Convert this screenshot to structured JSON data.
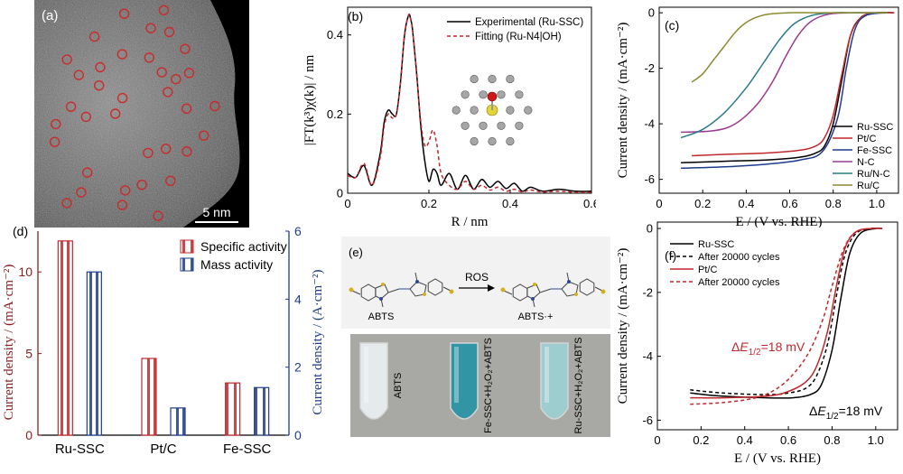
{
  "panels": {
    "a": {
      "label": "(a)",
      "scalebar": "5 nm",
      "circle_count": 36
    },
    "b": {
      "label": "(b)"
    },
    "c": {
      "label": "(c)"
    },
    "d": {
      "label": "(d)"
    },
    "e": {
      "label": "(e)",
      "reactant": "ABTS",
      "arrow_label": "ROS",
      "product": "ABTS·+",
      "vial_labels": [
        "ABTS",
        "Fe-SSC+H₂O₂+ABTS",
        "Ru-SSC+H₂O₂+ABTS"
      ],
      "vial_colors": [
        "#e9eef0",
        "#2c94a6",
        "#9ecfd3"
      ]
    },
    "f": {
      "label": "(f)",
      "annotation_red": "ΔE1/2=18 mV",
      "annotation_black": "ΔE1/2=18 mV"
    }
  },
  "chart_data": [
    {
      "panel": "b",
      "type": "line",
      "xlabel": "R / nm",
      "ylabel": "|FT(k³)χ(k)| / nm",
      "xlim": [
        0,
        0.6
      ],
      "ylim": [
        0,
        0.47
      ],
      "xticks": [
        0,
        0.2,
        0.4,
        0.6
      ],
      "yticks": [
        0,
        0.2,
        0.4
      ],
      "legend_position": "top-right",
      "series": [
        {
          "name": "Experimental (Ru-SSC)",
          "color": "#000000",
          "dash": "solid",
          "x": [
            0,
            0.02,
            0.04,
            0.06,
            0.08,
            0.09,
            0.1,
            0.11,
            0.12,
            0.13,
            0.14,
            0.15,
            0.155,
            0.16,
            0.17,
            0.18,
            0.19,
            0.2,
            0.21,
            0.22,
            0.23,
            0.25,
            0.27,
            0.29,
            0.31,
            0.33,
            0.35,
            0.37,
            0.39,
            0.41,
            0.43,
            0.45,
            0.48,
            0.52,
            0.56,
            0.6
          ],
          "y": [
            0.05,
            0.04,
            0.07,
            0.02,
            0.1,
            0.18,
            0.21,
            0.2,
            0.2,
            0.28,
            0.4,
            0.45,
            0.44,
            0.41,
            0.3,
            0.17,
            0.08,
            0.03,
            0.06,
            0.05,
            0.02,
            0.05,
            0.01,
            0.045,
            0.01,
            0.035,
            0.015,
            0.03,
            0.012,
            0.025,
            0.005,
            0.015,
            0.005,
            0.01,
            0.005,
            0.005
          ]
        },
        {
          "name": "Fitting (Ru-N4|OH)",
          "color": "#c0282d",
          "dash": "dashed",
          "x": [
            0,
            0.02,
            0.04,
            0.06,
            0.08,
            0.09,
            0.1,
            0.11,
            0.12,
            0.13,
            0.14,
            0.15,
            0.155,
            0.16,
            0.17,
            0.18,
            0.19,
            0.2,
            0.21,
            0.22,
            0.23,
            0.25,
            0.27,
            0.29,
            0.31,
            0.33,
            0.35,
            0.37,
            0.39,
            0.41,
            0.43,
            0.45,
            0.48,
            0.52,
            0.56,
            0.6
          ],
          "y": [
            0.045,
            0.04,
            0.075,
            0.02,
            0.09,
            0.17,
            0.2,
            0.19,
            0.2,
            0.28,
            0.4,
            0.45,
            0.44,
            0.41,
            0.3,
            0.18,
            0.12,
            0.13,
            0.16,
            0.12,
            0.05,
            0.02,
            0.01,
            0.03,
            0.01,
            0.02,
            0.008,
            0.015,
            0.005,
            0.01,
            0.003,
            0.008,
            0.003,
            0.005,
            0.002,
            0.002
          ]
        }
      ]
    },
    {
      "panel": "c",
      "type": "line",
      "xlabel": "E / (V vs. RHE)",
      "ylabel": "Current density / (mA·cm⁻²)",
      "xlim": [
        0,
        1.1
      ],
      "ylim": [
        -6.5,
        0.2
      ],
      "xticks": [
        0,
        0.2,
        0.4,
        0.6,
        0.8,
        1.0
      ],
      "yticks": [
        0,
        -2,
        -4,
        -6
      ],
      "legend_position": "bottom-right",
      "series": [
        {
          "name": "Ru-SSC",
          "color": "#000000",
          "x": [
            0.1,
            0.3,
            0.5,
            0.65,
            0.72,
            0.76,
            0.8,
            0.84,
            0.88,
            0.93,
            1.0,
            1.08
          ],
          "y": [
            -5.4,
            -5.35,
            -5.3,
            -5.2,
            -5.05,
            -4.8,
            -4.0,
            -2.4,
            -0.8,
            -0.15,
            0,
            0
          ]
        },
        {
          "name": "Pt/C",
          "color": "#c0282d",
          "x": [
            0.15,
            0.3,
            0.5,
            0.65,
            0.72,
            0.76,
            0.8,
            0.84,
            0.88,
            0.93,
            1.0,
            1.08
          ],
          "y": [
            -5.15,
            -5.1,
            -5.05,
            -4.95,
            -4.8,
            -4.5,
            -3.7,
            -2.2,
            -0.8,
            -0.15,
            0,
            0
          ]
        },
        {
          "name": "Fe-SSC",
          "color": "#1f3c8c",
          "x": [
            0.1,
            0.3,
            0.5,
            0.65,
            0.75,
            0.82,
            0.86,
            0.9,
            0.95,
            1.05
          ],
          "y": [
            -5.6,
            -5.55,
            -5.45,
            -5.3,
            -5.0,
            -3.8,
            -2.0,
            -0.6,
            -0.1,
            0
          ]
        },
        {
          "name": "N-C",
          "color": "#9c3a8e",
          "x": [
            0.1,
            0.25,
            0.35,
            0.45,
            0.52,
            0.58,
            0.64,
            0.7,
            0.78,
            0.9,
            1.05
          ],
          "y": [
            -4.3,
            -4.25,
            -4.0,
            -3.3,
            -2.5,
            -1.6,
            -0.8,
            -0.3,
            -0.05,
            0,
            0
          ]
        },
        {
          "name": "Ru/N-C",
          "color": "#2b7a8c",
          "x": [
            0.1,
            0.2,
            0.3,
            0.4,
            0.48,
            0.55,
            0.62,
            0.7,
            0.8,
            0.9,
            1.05
          ],
          "y": [
            -4.5,
            -4.2,
            -3.6,
            -2.7,
            -1.8,
            -1.0,
            -0.4,
            -0.1,
            0,
            0,
            0
          ]
        },
        {
          "name": "Ru/C",
          "color": "#8c8a2e",
          "x": [
            0.15,
            0.2,
            0.25,
            0.3,
            0.35,
            0.4,
            0.45,
            0.5,
            0.6,
            0.7,
            0.8,
            0.9,
            1.05
          ],
          "y": [
            -2.5,
            -2.2,
            -1.7,
            -1.2,
            -0.7,
            -0.35,
            -0.15,
            -0.05,
            0,
            0,
            0,
            0,
            0
          ]
        }
      ]
    },
    {
      "panel": "d",
      "type": "bar",
      "categories": [
        "Ru-SSC",
        "Pt/C",
        "Fe-SSC"
      ],
      "ylabel": "Current density / (mA·cm⁻²)",
      "y2label": "Current density / (A·cm⁻²)",
      "ylim": [
        0,
        12.5
      ],
      "y2lim": [
        0,
        6
      ],
      "yticks": [
        0,
        5,
        10
      ],
      "y2ticks": [
        0,
        2,
        4,
        6
      ],
      "legend_position": "top-right",
      "series": [
        {
          "name": "Specific activity",
          "color": "#c0282d",
          "axis": "left",
          "values": [
            11.9,
            4.7,
            3.2
          ]
        },
        {
          "name": "Mass activity",
          "color": "#1f3c8c",
          "axis": "right",
          "values": [
            4.8,
            0.8,
            1.4
          ]
        }
      ]
    },
    {
      "panel": "f",
      "type": "line",
      "xlabel": "E / (V vs. RHE)",
      "ylabel": "Current density / (mA·cm⁻²)",
      "xlim": [
        0,
        1.1
      ],
      "ylim": [
        -6.3,
        0.2
      ],
      "xticks": [
        0,
        0.2,
        0.4,
        0.6,
        0.8,
        1.0
      ],
      "yticks": [
        0,
        -2,
        -4,
        -6
      ],
      "legend_position": "top-left",
      "series": [
        {
          "name": "Ru-SSC",
          "color": "#000000",
          "dash": "solid",
          "x": [
            0.15,
            0.3,
            0.5,
            0.62,
            0.7,
            0.75,
            0.8,
            0.84,
            0.88,
            0.93,
            1.0,
            1.03
          ],
          "y": [
            -5.15,
            -5.25,
            -5.3,
            -5.3,
            -5.2,
            -4.9,
            -3.8,
            -2.2,
            -0.8,
            -0.15,
            0,
            0
          ]
        },
        {
          "name": "After 20000 cycles",
          "color": "#000000",
          "dash": "dashed",
          "x": [
            0.15,
            0.3,
            0.5,
            0.6,
            0.68,
            0.73,
            0.78,
            0.82,
            0.86,
            0.91,
            0.98,
            1.03
          ],
          "y": [
            -5.05,
            -5.15,
            -5.2,
            -5.15,
            -5.0,
            -4.6,
            -3.6,
            -2.1,
            -0.8,
            -0.15,
            0,
            0
          ]
        },
        {
          "name": "Pt/C",
          "color": "#c0282d",
          "dash": "solid",
          "x": [
            0.15,
            0.3,
            0.5,
            0.6,
            0.68,
            0.73,
            0.78,
            0.82,
            0.86,
            0.91,
            0.98,
            1.03
          ],
          "y": [
            -5.3,
            -5.3,
            -5.25,
            -5.1,
            -4.8,
            -4.3,
            -3.2,
            -1.8,
            -0.6,
            -0.1,
            0,
            0
          ]
        },
        {
          "name": "After 20000 cycles",
          "color": "#c0282d",
          "dash": "dashed",
          "x": [
            0.15,
            0.3,
            0.45,
            0.55,
            0.63,
            0.7,
            0.76,
            0.8,
            0.85,
            0.9,
            0.97,
            1.03
          ],
          "y": [
            -5.5,
            -5.45,
            -5.3,
            -5.0,
            -4.5,
            -3.8,
            -2.8,
            -1.8,
            -0.7,
            -0.15,
            0,
            0
          ]
        }
      ]
    }
  ]
}
